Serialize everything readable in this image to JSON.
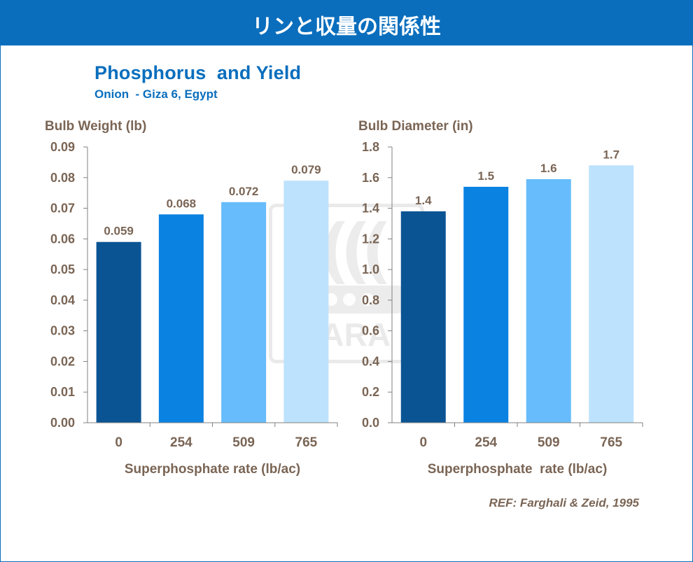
{
  "header": {
    "title": "リンと収量の関係性"
  },
  "figure": {
    "title": "Phosphorus  and Yield",
    "subtitle": "Onion  - Giza 6, Egypt",
    "reference": "REF: Farghali & Zeid, 1995",
    "watermark_text": "YARA"
  },
  "colors": {
    "banner": "#0a6ebd",
    "title_text": "#0a6ebd",
    "axis_text": "#7a6555",
    "axis_line": "#808080",
    "bar_colors": [
      "#0a5494",
      "#0a82e2",
      "#67bcfb",
      "#bde2fd"
    ]
  },
  "chart_data": [
    {
      "type": "bar",
      "ylabel": "Bulb Weight (lb)",
      "xlabel": "Superphosphate rate (lb/ac)",
      "categories": [
        "0",
        "254",
        "509",
        "765"
      ],
      "values": [
        0.059,
        0.068,
        0.072,
        0.079
      ],
      "value_labels": [
        "0.059",
        "0.068",
        "0.072",
        "0.079"
      ],
      "ylim": [
        0,
        0.09
      ],
      "yticks": [
        "0.00",
        "0.01",
        "0.02",
        "0.03",
        "0.04",
        "0.05",
        "0.06",
        "0.07",
        "0.08",
        "0.09"
      ],
      "grid": false
    },
    {
      "type": "bar",
      "ylabel": "Bulb Diameter (in)",
      "xlabel": "Superphosphate  rate (lb/ac)",
      "categories": [
        "0",
        "254",
        "509",
        "765"
      ],
      "values": [
        1.38,
        1.54,
        1.59,
        1.68
      ],
      "value_labels": [
        "1.4",
        "1.5",
        "1.6",
        "1.7"
      ],
      "ylim": [
        0,
        1.8
      ],
      "yticks": [
        "0.0",
        "0.2",
        "0.4",
        "0.6",
        "0.8",
        "1.0",
        "1.2",
        "1.4",
        "1.6",
        "1.8"
      ],
      "grid": false
    }
  ]
}
